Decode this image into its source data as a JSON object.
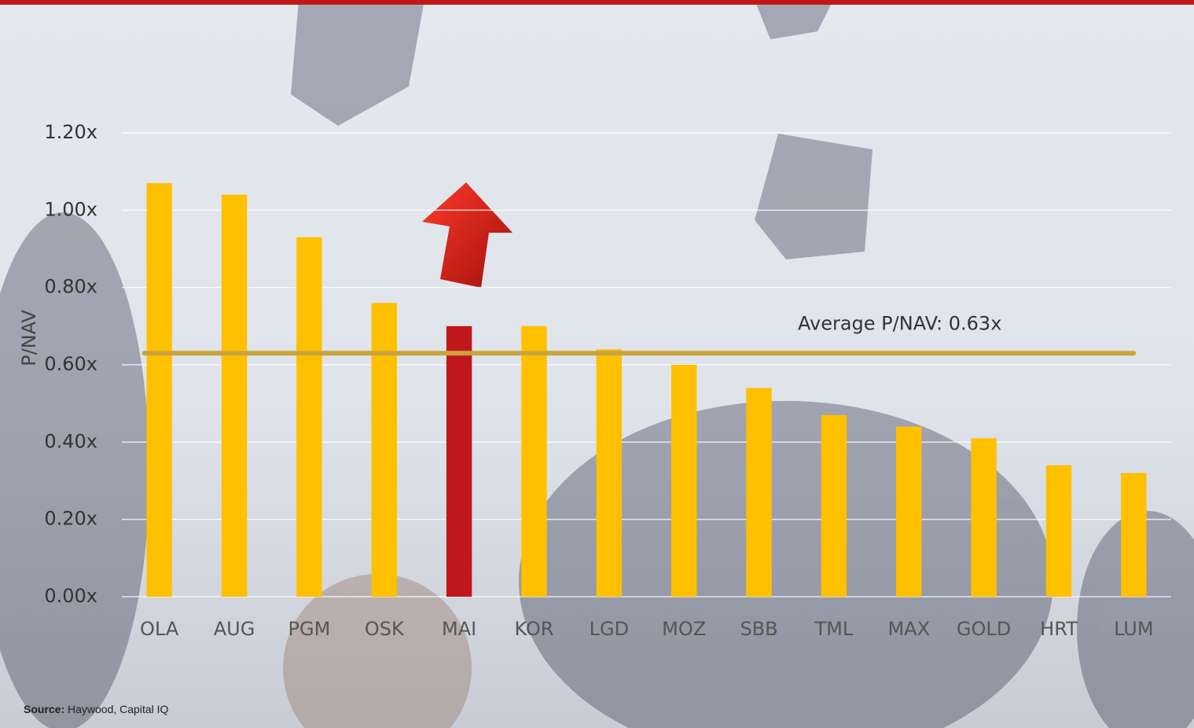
{
  "chart_data": {
    "type": "bar",
    "y_label": "P/NAV",
    "categories": [
      "OLA",
      "AUG",
      "PGM",
      "OSK",
      "MAI",
      "KOR",
      "LGD",
      "MOZ",
      "SBB",
      "TML",
      "MAX",
      "GOLD",
      "HRT",
      "LUM"
    ],
    "values": [
      1.07,
      1.04,
      0.93,
      0.76,
      0.7,
      0.7,
      0.64,
      0.6,
      0.54,
      0.47,
      0.44,
      0.41,
      0.34,
      0.32
    ],
    "colors": [
      "#ffc000",
      "#ffc000",
      "#ffc000",
      "#ffc000",
      "#c0181a",
      "#ffc000",
      "#ffc000",
      "#ffc000",
      "#ffc000",
      "#ffc000",
      "#ffc000",
      "#ffc000",
      "#ffc000",
      "#ffc000"
    ],
    "ylim": [
      0,
      1.2
    ],
    "yticks": [
      {
        "value": 0,
        "label": "0.00x"
      },
      {
        "value": 0.2,
        "label": "0.20x"
      },
      {
        "value": 0.4,
        "label": "0.40x"
      },
      {
        "value": 0.6,
        "label": "0.60x"
      },
      {
        "value": 0.8,
        "label": "0.80x"
      },
      {
        "value": 1.0,
        "label": "1.00x"
      },
      {
        "value": 1.2,
        "label": "1.20x"
      }
    ],
    "grid": true,
    "average": {
      "value": 0.63,
      "label": "Average P/NAV: 0.63x",
      "color": "#c8a43c"
    },
    "source": {
      "label": "Source:",
      "text": "Haywood, Capital IQ"
    }
  }
}
